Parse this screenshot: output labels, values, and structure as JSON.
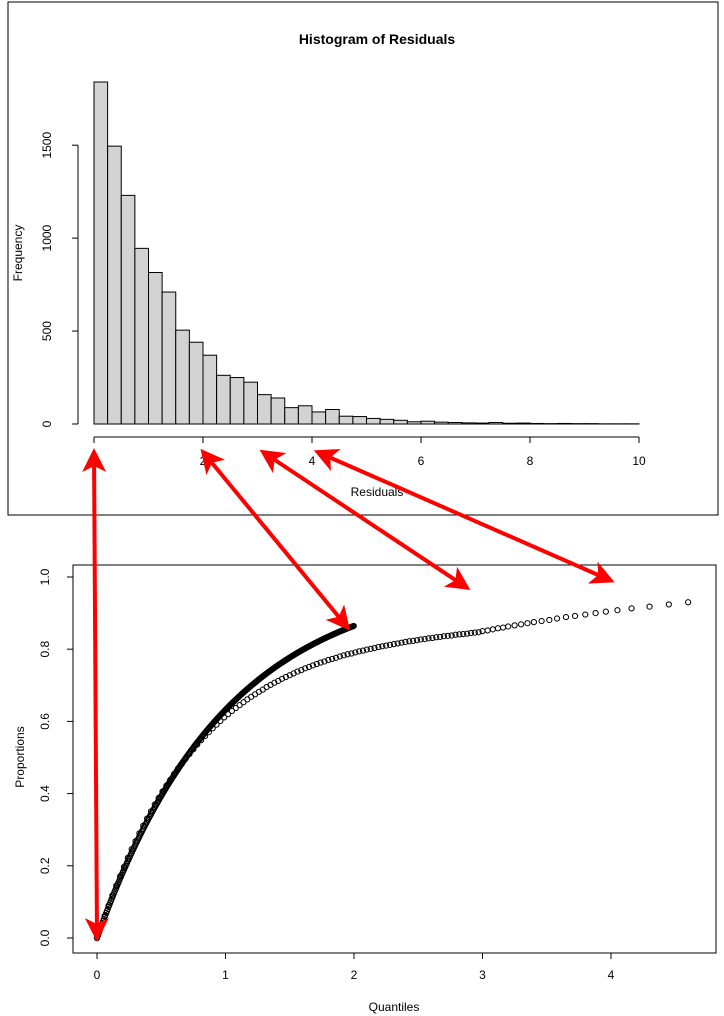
{
  "chart_data": [
    {
      "type": "bar",
      "title": "Histogram of Residuals",
      "xlabel": "Residuals",
      "ylabel": "Frequency",
      "bin_width": 0.25,
      "bin_start": 0,
      "values": [
        1840,
        1495,
        1230,
        945,
        815,
        710,
        505,
        440,
        370,
        262,
        250,
        225,
        158,
        140,
        88,
        98,
        65,
        78,
        42,
        40,
        30,
        25,
        20,
        12,
        15,
        10,
        8,
        6,
        5,
        8,
        4,
        5,
        3,
        2,
        3,
        2,
        2,
        1,
        1,
        1,
        0,
        0,
        0,
        0,
        0,
        0,
        0,
        0,
        0,
        0,
        0,
        0,
        0,
        0,
        0,
        0,
        0,
        0,
        0,
        0,
        0,
        0,
        0,
        0,
        0,
        0,
        0,
        0,
        0,
        0,
        0,
        0,
        0,
        0,
        0,
        0,
        0,
        0,
        0,
        0,
        0,
        0,
        0,
        0,
        0,
        0,
        0,
        0,
        0,
        0,
        0,
        0,
        0,
        0,
        0,
        0,
        0,
        0,
        0,
        0,
        0,
        0,
        0,
        0,
        0,
        0,
        0,
        0,
        0,
        0,
        0,
        0,
        0,
        0,
        0,
        0,
        0,
        0,
        0,
        0,
        0,
        0,
        0,
        0,
        0,
        0,
        0,
        0,
        0,
        0,
        0,
        0,
        0,
        0,
        0,
        0,
        0,
        0,
        0,
        0,
        0,
        0,
        0,
        0,
        0,
        0,
        0,
        0,
        0,
        0,
        0,
        0,
        0,
        0,
        0,
        0,
        0,
        0,
        0,
        0,
        0,
        0,
        0,
        0,
        0,
        0,
        0,
        0,
        0,
        0,
        0,
        0,
        0,
        0,
        0,
        0,
        0,
        0,
        0,
        0,
        0,
        0,
        0,
        0,
        0,
        0,
        0,
        0,
        0,
        0,
        0,
        0,
        0,
        0,
        0,
        0,
        0,
        0,
        0,
        0
      ],
      "xlim": [
        0,
        10.4
      ],
      "ylim": [
        0,
        1840
      ],
      "x_ticks": [
        0,
        2,
        4,
        6,
        8,
        10
      ],
      "y_ticks": [
        0,
        500,
        1000,
        1500
      ],
      "grid": false
    },
    {
      "type": "scatter",
      "title": "",
      "xlabel": "Quantiles",
      "ylabel": "Proportions",
      "xlim": [
        -0.17,
        4.77
      ],
      "ylim": [
        -0.04,
        1.04
      ],
      "x_ticks": [
        0,
        1,
        2,
        3,
        4
      ],
      "y_ticks": [
        0.0,
        0.2,
        0.4,
        0.6,
        0.8,
        1.0
      ],
      "grid": false,
      "x": [
        0.0,
        0.03,
        0.06,
        0.09,
        0.12,
        0.15,
        0.18,
        0.21,
        0.24,
        0.27,
        0.3,
        0.33,
        0.36,
        0.39,
        0.42,
        0.45,
        0.48,
        0.51,
        0.54,
        0.57,
        0.6,
        0.63,
        0.66,
        0.69,
        0.72,
        0.75,
        0.78,
        0.81,
        0.84,
        0.87,
        0.9,
        0.93,
        0.96,
        0.99,
        1.02,
        1.05,
        1.08,
        1.11,
        1.14,
        1.17,
        1.2,
        1.23,
        1.26,
        1.29,
        1.32,
        1.35,
        1.38,
        1.41,
        1.44,
        1.47,
        1.5,
        1.53,
        1.56,
        1.59,
        1.62,
        1.65,
        1.68,
        1.71,
        1.74,
        1.77,
        1.8,
        1.83,
        1.86,
        1.89,
        1.92,
        1.95,
        1.98,
        2.01,
        2.04,
        2.07,
        2.1,
        2.13,
        2.16,
        2.19,
        2.22,
        2.25,
        2.28,
        2.31,
        2.34,
        2.37,
        2.4,
        2.43,
        2.46,
        2.49,
        2.52,
        2.55,
        2.58,
        2.61,
        2.64,
        2.67,
        2.7,
        2.73,
        2.76,
        2.79,
        2.82,
        2.85,
        2.88,
        2.91,
        2.94,
        2.97,
        3.0,
        3.04,
        3.08,
        3.12,
        3.16,
        3.2,
        3.25,
        3.3,
        3.35,
        3.4,
        3.46,
        3.52,
        3.58,
        3.65,
        3.72,
        3.8,
        3.88,
        3.96,
        4.05,
        4.16,
        4.3,
        4.45,
        4.6
      ],
      "y": [
        0.0,
        0.031,
        0.061,
        0.09,
        0.118,
        0.145,
        0.171,
        0.197,
        0.222,
        0.246,
        0.268,
        0.29,
        0.311,
        0.331,
        0.351,
        0.37,
        0.388,
        0.406,
        0.422,
        0.438,
        0.454,
        0.469,
        0.483,
        0.497,
        0.51,
        0.523,
        0.536,
        0.548,
        0.559,
        0.57,
        0.581,
        0.591,
        0.601,
        0.611,
        0.62,
        0.629,
        0.637,
        0.645,
        0.653,
        0.661,
        0.668,
        0.675,
        0.682,
        0.688,
        0.695,
        0.701,
        0.707,
        0.712,
        0.718,
        0.723,
        0.728,
        0.733,
        0.738,
        0.742,
        0.747,
        0.751,
        0.755,
        0.759,
        0.763,
        0.766,
        0.77,
        0.773,
        0.776,
        0.78,
        0.783,
        0.786,
        0.788,
        0.791,
        0.794,
        0.796,
        0.799,
        0.801,
        0.803,
        0.806,
        0.808,
        0.81,
        0.812,
        0.814,
        0.816,
        0.818,
        0.82,
        0.822,
        0.823,
        0.825,
        0.827,
        0.828,
        0.83,
        0.831,
        0.833,
        0.834,
        0.836,
        0.837,
        0.838,
        0.84,
        0.841,
        0.842,
        0.843,
        0.845,
        0.846,
        0.847,
        0.85,
        0.852,
        0.855,
        0.858,
        0.86,
        0.863,
        0.866,
        0.869,
        0.872,
        0.875,
        0.878,
        0.881,
        0.885,
        0.889,
        0.892,
        0.896,
        0.9,
        0.904,
        0.908,
        0.913,
        0.918,
        0.924,
        0.93
      ]
    }
  ],
  "colors": {
    "bar_fill": "#d3d3d3",
    "stroke": "#000000",
    "arrow": "#ff0000"
  },
  "arrows": [
    {
      "from_axis": "histogram",
      "from_x": 0,
      "to_axis": "scatter",
      "to": [
        0,
        0.0
      ]
    },
    {
      "from_axis": "histogram",
      "from_x": 2,
      "to_axis": "scatter",
      "to": [
        1.95,
        0.86
      ]
    },
    {
      "from_axis": "histogram",
      "from_x": 3.1,
      "to_axis": "scatter",
      "to": [
        2.88,
        0.97
      ]
    },
    {
      "from_axis": "histogram",
      "from_x": 4.1,
      "to_axis": "scatter",
      "to": [
        4.0,
        0.99
      ]
    }
  ]
}
